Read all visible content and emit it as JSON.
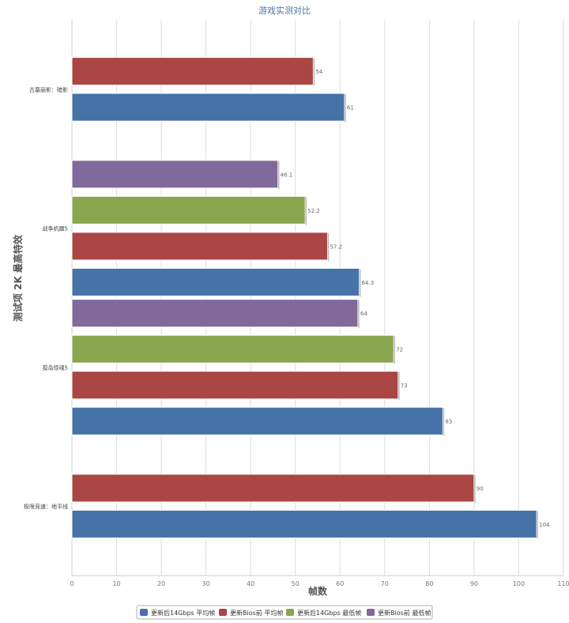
{
  "chart_data": {
    "type": "bar",
    "orientation": "horizontal",
    "title": "游戏实测对比",
    "xlabel": "帧数",
    "ylabel": "测试项 2K 最高特效",
    "xlim": [
      0,
      110
    ],
    "xticks": [
      0,
      10,
      20,
      30,
      40,
      50,
      60,
      70,
      80,
      90,
      100,
      110
    ],
    "grid": "vertical",
    "legend_position": "bottom",
    "categories": [
      "古墓丽影：暗影",
      "战争机器5",
      "孤岛惊魂5",
      "极限竞速：地平线"
    ],
    "series": [
      {
        "name": "更新后14Gbps 平均帧",
        "color": "#4572A7",
        "values": [
          61,
          64.3,
          83,
          104
        ]
      },
      {
        "name": "更新Bios前 平均帧",
        "color": "#AA4643",
        "values": [
          54,
          57.2,
          73,
          90
        ]
      },
      {
        "name": "更新后14Gbps 最低帧",
        "color": "#89A54E",
        "values": [
          null,
          52.2,
          72,
          null
        ]
      },
      {
        "name": "更新Bios前 最低帧",
        "color": "#80699B",
        "values": [
          null,
          46.1,
          64,
          null
        ]
      }
    ]
  }
}
